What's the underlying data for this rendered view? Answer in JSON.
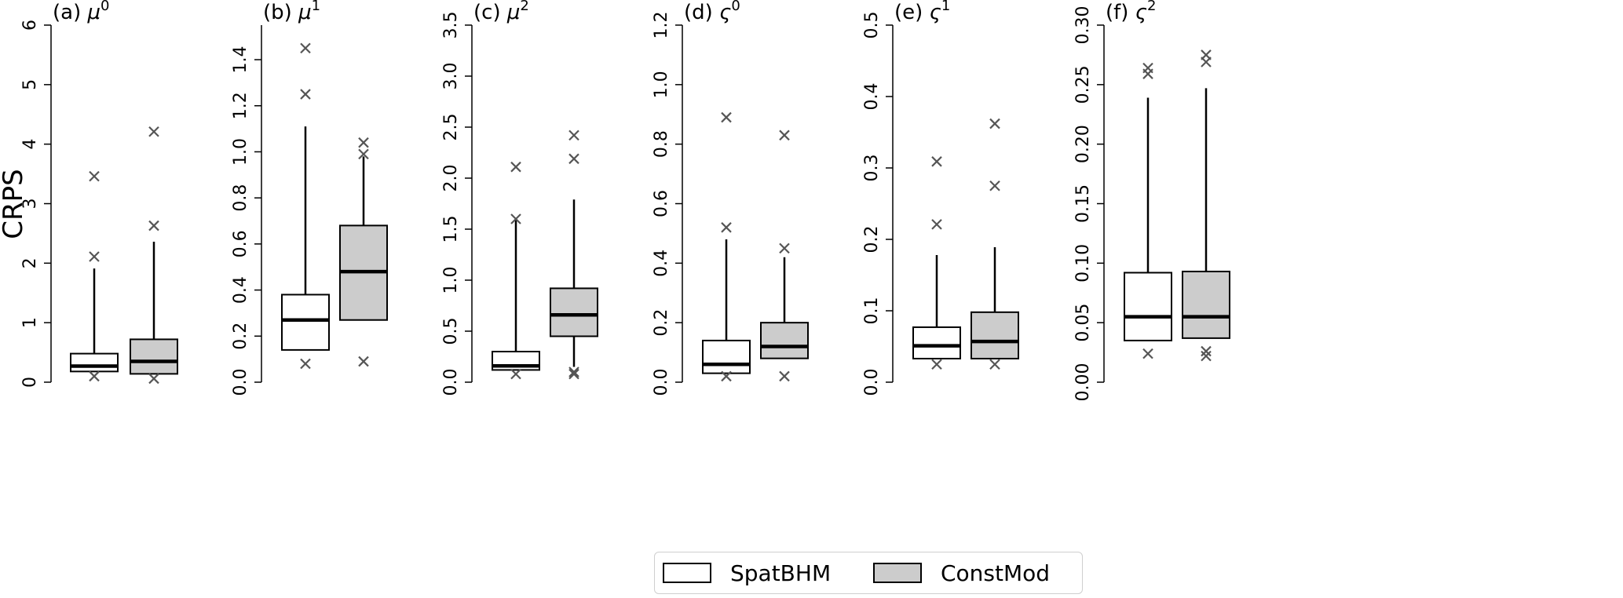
{
  "chart_data": {
    "type": "boxplot",
    "ylabel": "CRPS",
    "legend_placement": "bottom-center",
    "series": [
      {
        "name": "SpatBHM",
        "color": "#ffffff"
      },
      {
        "name": "ConstMod",
        "color": "#cccccc"
      }
    ],
    "panels": [
      {
        "id": "a",
        "title_prefix": "(a) ",
        "symbol": "μ",
        "sup": "0",
        "ylim": [
          0,
          6
        ],
        "ticks": [
          "0",
          "1",
          "2",
          "3",
          "4",
          "5",
          "6"
        ],
        "boxes": [
          {
            "series": "SpatBHM",
            "low": 0.18,
            "q1": 0.18,
            "median": 0.27,
            "q3": 0.48,
            "high": 1.91,
            "outliers": [
              3.46,
              2.11,
              0.1
            ]
          },
          {
            "series": "ConstMod",
            "low": 0.14,
            "q1": 0.14,
            "median": 0.35,
            "q3": 0.72,
            "high": 2.36,
            "outliers": [
              4.21,
              2.63,
              0.06
            ]
          }
        ]
      },
      {
        "id": "b",
        "title_prefix": "(b) ",
        "symbol": "μ",
        "sup": "1",
        "ylim": [
          0,
          1.55
        ],
        "ticks": [
          "0.0",
          "0.2",
          "0.4",
          "0.6",
          "0.8",
          "1.0",
          "1.2",
          "1.4"
        ],
        "boxes": [
          {
            "series": "SpatBHM",
            "low": 0.14,
            "q1": 0.14,
            "median": 0.27,
            "q3": 0.38,
            "high": 1.11,
            "outliers": [
              1.45,
              1.25,
              0.08
            ]
          },
          {
            "series": "ConstMod",
            "low": 0.27,
            "q1": 0.27,
            "median": 0.48,
            "q3": 0.68,
            "high": 0.98,
            "outliers": [
              1.04,
              0.99,
              0.09
            ]
          }
        ]
      },
      {
        "id": "c",
        "title_prefix": "(c) ",
        "symbol": "μ",
        "sup": "2",
        "ylim": [
          0,
          3.5
        ],
        "ticks": [
          "0.0",
          "0.5",
          "1.0",
          "1.5",
          "2.0",
          "2.5",
          "3.0",
          "3.5"
        ],
        "boxes": [
          {
            "series": "SpatBHM",
            "low": 0.12,
            "q1": 0.12,
            "median": 0.16,
            "q3": 0.3,
            "high": 1.6,
            "outliers": [
              2.11,
              1.6,
              0.08
            ]
          },
          {
            "series": "ConstMod",
            "low": 0.15,
            "q1": 0.45,
            "median": 0.66,
            "q3": 0.92,
            "high": 1.79,
            "outliers": [
              2.42,
              2.19,
              0.1,
              0.08
            ]
          }
        ]
      },
      {
        "id": "d",
        "title_prefix": "(d) ",
        "symbol": "ς",
        "sup": "0",
        "ylim": [
          0,
          1.2
        ],
        "ticks": [
          "0.0",
          "0.2",
          "0.4",
          "0.6",
          "0.8",
          "1.0",
          "1.2"
        ],
        "boxes": [
          {
            "series": "SpatBHM",
            "low": 0.03,
            "q1": 0.03,
            "median": 0.06,
            "q3": 0.14,
            "high": 0.48,
            "outliers": [
              0.89,
              0.52,
              0.02
            ]
          },
          {
            "series": "ConstMod",
            "low": 0.08,
            "q1": 0.08,
            "median": 0.12,
            "q3": 0.2,
            "high": 0.42,
            "outliers": [
              0.83,
              0.45,
              0.02
            ]
          }
        ]
      },
      {
        "id": "e",
        "title_prefix": "(e) ",
        "symbol": "ς",
        "sup": "1",
        "ylim": [
          0,
          0.5
        ],
        "ticks": [
          "0.0",
          "0.1",
          "0.2",
          "0.3",
          "0.4",
          "0.5"
        ],
        "boxes": [
          {
            "series": "SpatBHM",
            "low": 0.033,
            "q1": 0.033,
            "median": 0.051,
            "q3": 0.077,
            "high": 0.178,
            "outliers": [
              0.309,
              0.221,
              0.025
            ]
          },
          {
            "series": "ConstMod",
            "low": 0.033,
            "q1": 0.033,
            "median": 0.057,
            "q3": 0.098,
            "high": 0.189,
            "outliers": [
              0.362,
              0.275,
              0.025
            ]
          }
        ]
      },
      {
        "id": "f",
        "title_prefix": "(f) ",
        "symbol": "ς",
        "sup": "2",
        "ylim": [
          0,
          0.3
        ],
        "ticks": [
          "0.00",
          "0.05",
          "0.10",
          "0.15",
          "0.20",
          "0.25",
          "0.30"
        ],
        "boxes": [
          {
            "series": "SpatBHM",
            "low": 0.035,
            "q1": 0.035,
            "median": 0.055,
            "q3": 0.092,
            "high": 0.239,
            "outliers": [
              0.264,
              0.259,
              0.024
            ]
          },
          {
            "series": "ConstMod",
            "low": 0.037,
            "q1": 0.037,
            "median": 0.055,
            "q3": 0.093,
            "high": 0.247,
            "outliers": [
              0.275,
              0.269,
              0.026,
              0.022
            ]
          }
        ]
      }
    ]
  }
}
